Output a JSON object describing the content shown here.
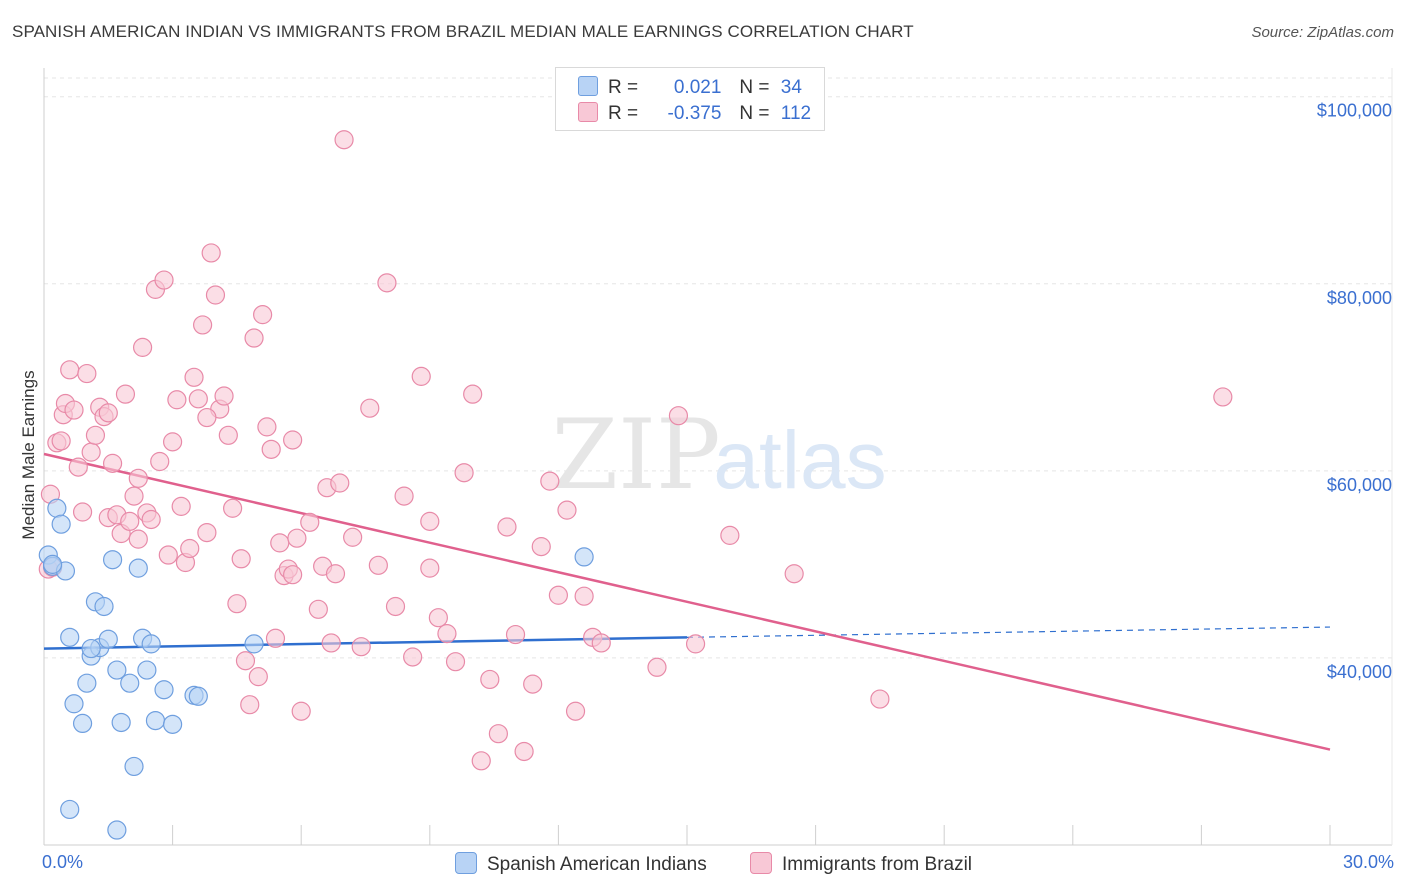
{
  "header": {
    "title": "SPANISH AMERICAN INDIAN VS IMMIGRANTS FROM BRAZIL MEDIAN MALE EARNINGS CORRELATION CHART",
    "source": "Source: ZipAtlas.com"
  },
  "legend": {
    "series1": {
      "r_label": "R =",
      "r_value": "0.021",
      "n_label": "N =",
      "n_value": "34"
    },
    "series2": {
      "r_label": "R =",
      "r_value": "-0.375",
      "n_label": "N =",
      "n_value": "112"
    }
  },
  "axis": {
    "x_min_label": "0.0%",
    "x_max_label": "30.0%",
    "y_label": "Median Male Earnings"
  },
  "watermark": {
    "zip": "ZIP",
    "atlas": "atlas"
  },
  "colors": {
    "blue_fill": "#b8d3f5",
    "blue_stroke": "#6f9fdf",
    "blue_line": "#2f6fcf",
    "pink_fill": "#f8c8d6",
    "pink_stroke": "#e88aa8",
    "pink_line": "#e0608d",
    "tick_text": "#3a6fd0",
    "grid": "#e5e5e5"
  },
  "chart_data": {
    "type": "scatter",
    "title": "SPANISH AMERICAN INDIAN VS IMMIGRANTS FROM BRAZIL MEDIAN MALE EARNINGS CORRELATION CHART",
    "xlabel": "",
    "ylabel": "Median Male Earnings",
    "xlim": [
      0,
      30
    ],
    "ylim": [
      20000,
      102000
    ],
    "y_ticks": [
      40000,
      60000,
      80000,
      100000
    ],
    "y_tick_labels": [
      "$40,000",
      "$60,000",
      "$80,000",
      "$100,000"
    ],
    "x_tick_labels": [
      "0.0%",
      "30.0%"
    ],
    "series": [
      {
        "name": "Spanish American Indians",
        "color": "#b8d3f5",
        "r": 0.021,
        "n": 34,
        "trend": {
          "x": [
            0,
            15
          ],
          "y": [
            41000,
            42200
          ],
          "extend_to": 30,
          "extend_y": 43300
        },
        "points": [
          [
            0.1,
            51000
          ],
          [
            0.2,
            49800
          ],
          [
            0.3,
            56000
          ],
          [
            0.4,
            54300
          ],
          [
            0.5,
            49300
          ],
          [
            0.6,
            42200
          ],
          [
            0.7,
            35100
          ],
          [
            0.9,
            33000
          ],
          [
            1.0,
            37300
          ],
          [
            1.1,
            40200
          ],
          [
            1.2,
            46000
          ],
          [
            1.3,
            41100
          ],
          [
            1.4,
            45500
          ],
          [
            1.5,
            42000
          ],
          [
            1.6,
            50500
          ],
          [
            1.7,
            38700
          ],
          [
            1.8,
            33100
          ],
          [
            2.0,
            37300
          ],
          [
            2.1,
            28400
          ],
          [
            2.2,
            49600
          ],
          [
            2.3,
            42100
          ],
          [
            2.4,
            38700
          ],
          [
            2.5,
            41500
          ],
          [
            2.6,
            33300
          ],
          [
            2.8,
            36600
          ],
          [
            3.0,
            32900
          ],
          [
            3.5,
            36000
          ],
          [
            3.6,
            35900
          ],
          [
            4.9,
            41500
          ],
          [
            12.6,
            50800
          ],
          [
            0.6,
            23800
          ],
          [
            1.7,
            21600
          ],
          [
            0.2,
            50000
          ],
          [
            1.1,
            41000
          ]
        ]
      },
      {
        "name": "Immigrants from Brazil",
        "color": "#f8c8d6",
        "r": -0.375,
        "n": 112,
        "trend": {
          "x": [
            0,
            30
          ],
          "y": [
            61800,
            30200
          ]
        },
        "points": [
          [
            0.1,
            49500
          ],
          [
            0.15,
            57500
          ],
          [
            0.3,
            63000
          ],
          [
            0.4,
            63200
          ],
          [
            0.45,
            66000
          ],
          [
            0.5,
            67200
          ],
          [
            0.6,
            70800
          ],
          [
            0.7,
            66500
          ],
          [
            0.8,
            60400
          ],
          [
            0.9,
            55600
          ],
          [
            1.0,
            70400
          ],
          [
            1.1,
            62000
          ],
          [
            1.2,
            63800
          ],
          [
            1.3,
            66800
          ],
          [
            1.4,
            65800
          ],
          [
            1.5,
            55000
          ],
          [
            1.6,
            60800
          ],
          [
            1.7,
            55300
          ],
          [
            1.8,
            53300
          ],
          [
            1.9,
            68200
          ],
          [
            2.0,
            54600
          ],
          [
            2.1,
            57300
          ],
          [
            2.2,
            59200
          ],
          [
            2.3,
            73200
          ],
          [
            2.4,
            55500
          ],
          [
            2.5,
            54800
          ],
          [
            2.6,
            79400
          ],
          [
            2.7,
            61000
          ],
          [
            2.8,
            80400
          ],
          [
            2.9,
            51000
          ],
          [
            3.0,
            63100
          ],
          [
            3.1,
            67600
          ],
          [
            3.2,
            56200
          ],
          [
            3.3,
            50200
          ],
          [
            3.4,
            51700
          ],
          [
            3.5,
            70000
          ],
          [
            3.6,
            67700
          ],
          [
            3.7,
            75600
          ],
          [
            3.8,
            53400
          ],
          [
            3.9,
            83300
          ],
          [
            4.0,
            78800
          ],
          [
            4.1,
            66600
          ],
          [
            4.2,
            68000
          ],
          [
            4.3,
            63800
          ],
          [
            4.4,
            56000
          ],
          [
            4.5,
            45800
          ],
          [
            4.6,
            50600
          ],
          [
            4.7,
            39700
          ],
          [
            4.8,
            35000
          ],
          [
            4.9,
            74200
          ],
          [
            5.0,
            38000
          ],
          [
            5.1,
            76700
          ],
          [
            5.2,
            64700
          ],
          [
            5.3,
            62300
          ],
          [
            5.4,
            42100
          ],
          [
            5.5,
            52300
          ],
          [
            5.6,
            48800
          ],
          [
            5.7,
            49500
          ],
          [
            5.8,
            63300
          ],
          [
            5.9,
            52800
          ],
          [
            6.0,
            34300
          ],
          [
            6.2,
            54500
          ],
          [
            6.4,
            45200
          ],
          [
            6.5,
            49800
          ],
          [
            6.6,
            58200
          ],
          [
            6.7,
            41600
          ],
          [
            6.8,
            49000
          ],
          [
            6.9,
            58700
          ],
          [
            7.0,
            95400
          ],
          [
            7.2,
            52900
          ],
          [
            7.4,
            41200
          ],
          [
            7.6,
            66700
          ],
          [
            7.8,
            49900
          ],
          [
            8.0,
            80100
          ],
          [
            8.2,
            45500
          ],
          [
            8.4,
            57300
          ],
          [
            8.6,
            40100
          ],
          [
            8.8,
            70100
          ],
          [
            9.0,
            49600
          ],
          [
            9.2,
            44300
          ],
          [
            9.4,
            42600
          ],
          [
            9.6,
            39600
          ],
          [
            9.8,
            59800
          ],
          [
            10.0,
            68200
          ],
          [
            10.2,
            29000
          ],
          [
            10.4,
            37700
          ],
          [
            10.6,
            31900
          ],
          [
            10.8,
            54000
          ],
          [
            11.0,
            42500
          ],
          [
            11.2,
            30000
          ],
          [
            11.4,
            37200
          ],
          [
            11.6,
            51900
          ],
          [
            11.8,
            58900
          ],
          [
            12.0,
            46700
          ],
          [
            12.2,
            55800
          ],
          [
            12.4,
            34300
          ],
          [
            12.6,
            46600
          ],
          [
            12.8,
            42200
          ],
          [
            13.0,
            41600
          ],
          [
            14.3,
            39000
          ],
          [
            14.8,
            65900
          ],
          [
            15.2,
            41500
          ],
          [
            16.0,
            53100
          ],
          [
            17.5,
            49000
          ],
          [
            19.5,
            35600
          ],
          [
            27.5,
            67900
          ],
          [
            0.2,
            49700
          ],
          [
            1.5,
            66200
          ],
          [
            2.2,
            52700
          ],
          [
            3.8,
            65700
          ],
          [
            5.8,
            48900
          ],
          [
            9.0,
            54600
          ]
        ]
      }
    ]
  }
}
